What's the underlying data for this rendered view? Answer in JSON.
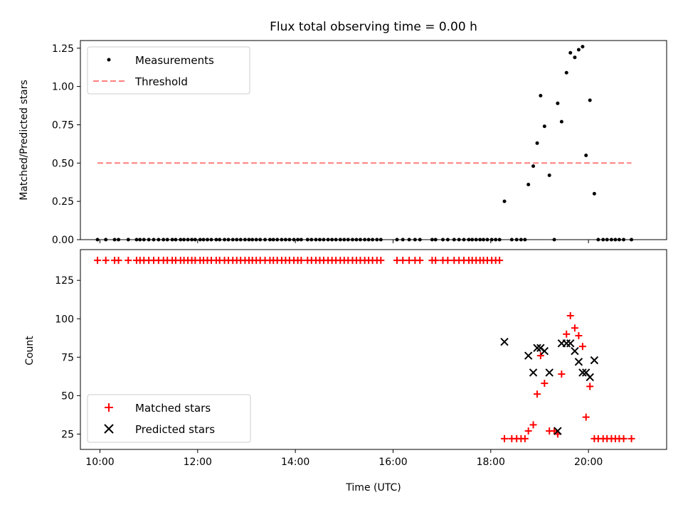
{
  "chart_data": [
    {
      "type": "scatter",
      "title": "Flux total observing time = 0.00 h",
      "xlabel": "",
      "ylabel": "Matched/Predicted stars",
      "ylim": [
        0,
        1.3
      ],
      "xlim": [
        9.6,
        21.6
      ],
      "yticks": [
        0,
        0.25,
        0.5,
        0.75,
        1.0,
        1.25
      ],
      "ytick_labels": [
        "0.00",
        "0.25",
        "0.50",
        "0.75",
        "1.00",
        "1.25"
      ],
      "legend": {
        "placement": "top-left",
        "entries": [
          "Measurements",
          "Threshold"
        ]
      },
      "series": [
        {
          "name": "Measurements",
          "marker": "dot",
          "color": "#000000",
          "points": [
            [
              9.95,
              0
            ],
            [
              10.12,
              0
            ],
            [
              10.3,
              0
            ],
            [
              10.38,
              0
            ],
            [
              10.58,
              0
            ],
            [
              10.75,
              0
            ],
            [
              10.82,
              0
            ],
            [
              10.9,
              0
            ],
            [
              11.0,
              0
            ],
            [
              11.1,
              0
            ],
            [
              11.2,
              0
            ],
            [
              11.3,
              0
            ],
            [
              11.38,
              0
            ],
            [
              11.48,
              0
            ],
            [
              11.55,
              0
            ],
            [
              11.65,
              0
            ],
            [
              11.72,
              0
            ],
            [
              11.8,
              0
            ],
            [
              11.88,
              0
            ],
            [
              11.95,
              0
            ],
            [
              12.05,
              0
            ],
            [
              12.12,
              0
            ],
            [
              12.2,
              0
            ],
            [
              12.28,
              0
            ],
            [
              12.38,
              0
            ],
            [
              12.45,
              0
            ],
            [
              12.55,
              0
            ],
            [
              12.63,
              0
            ],
            [
              12.72,
              0
            ],
            [
              12.8,
              0
            ],
            [
              12.88,
              0
            ],
            [
              12.97,
              0
            ],
            [
              13.05,
              0
            ],
            [
              13.12,
              0
            ],
            [
              13.2,
              0
            ],
            [
              13.28,
              0
            ],
            [
              13.38,
              0
            ],
            [
              13.48,
              0
            ],
            [
              13.55,
              0
            ],
            [
              13.63,
              0
            ],
            [
              13.72,
              0
            ],
            [
              13.8,
              0
            ],
            [
              13.88,
              0
            ],
            [
              13.97,
              0
            ],
            [
              14.05,
              0
            ],
            [
              14.12,
              0
            ],
            [
              14.25,
              0
            ],
            [
              14.33,
              0
            ],
            [
              14.42,
              0
            ],
            [
              14.5,
              0
            ],
            [
              14.58,
              0
            ],
            [
              14.67,
              0
            ],
            [
              14.75,
              0
            ],
            [
              14.83,
              0
            ],
            [
              14.92,
              0
            ],
            [
              15.0,
              0
            ],
            [
              15.08,
              0
            ],
            [
              15.17,
              0
            ],
            [
              15.25,
              0
            ],
            [
              15.33,
              0
            ],
            [
              15.42,
              0
            ],
            [
              15.5,
              0
            ],
            [
              15.58,
              0
            ],
            [
              15.67,
              0
            ],
            [
              15.75,
              0
            ],
            [
              16.08,
              0
            ],
            [
              16.2,
              0
            ],
            [
              16.33,
              0
            ],
            [
              16.45,
              0
            ],
            [
              16.55,
              0
            ],
            [
              16.8,
              0
            ],
            [
              16.87,
              0
            ],
            [
              17.02,
              0
            ],
            [
              17.12,
              0
            ],
            [
              17.25,
              0
            ],
            [
              17.35,
              0
            ],
            [
              17.45,
              0
            ],
            [
              17.55,
              0
            ],
            [
              17.62,
              0
            ],
            [
              17.7,
              0
            ],
            [
              17.78,
              0
            ],
            [
              17.85,
              0
            ],
            [
              17.93,
              0
            ],
            [
              18.02,
              0
            ],
            [
              18.1,
              0
            ],
            [
              18.18,
              0
            ],
            [
              18.28,
              0.25
            ],
            [
              18.43,
              0
            ],
            [
              18.53,
              0
            ],
            [
              18.62,
              0
            ],
            [
              18.7,
              0
            ],
            [
              18.77,
              0.36
            ],
            [
              18.87,
              0.48
            ],
            [
              18.95,
              0.63
            ],
            [
              19.02,
              0.94
            ],
            [
              19.1,
              0.74
            ],
            [
              19.2,
              0.42
            ],
            [
              19.3,
              0
            ],
            [
              19.37,
              0.89
            ],
            [
              19.45,
              0.77
            ],
            [
              19.55,
              1.09
            ],
            [
              19.63,
              1.22
            ],
            [
              19.72,
              1.19
            ],
            [
              19.8,
              1.24
            ],
            [
              19.88,
              1.26
            ],
            [
              19.95,
              0.55
            ],
            [
              20.03,
              0.91
            ],
            [
              20.12,
              0.3
            ],
            [
              20.2,
              0
            ],
            [
              20.3,
              0
            ],
            [
              20.38,
              0
            ],
            [
              20.47,
              0
            ],
            [
              20.55,
              0
            ],
            [
              20.63,
              0
            ],
            [
              20.72,
              0
            ],
            [
              20.88,
              0
            ]
          ]
        },
        {
          "name": "Threshold",
          "style": "dashed",
          "color": "#ff7f7f",
          "x": [
            9.95,
            20.88
          ],
          "y": [
            0.5,
            0.5
          ]
        }
      ]
    },
    {
      "type": "scatter",
      "title": "",
      "xlabel": "Time (UTC)",
      "ylabel": "Count",
      "ylim": [
        15,
        145
      ],
      "xlim": [
        9.6,
        21.6
      ],
      "yticks": [
        25,
        50,
        75,
        100,
        125
      ],
      "ytick_labels": [
        "25",
        "50",
        "75",
        "100",
        "125"
      ],
      "xticks": [
        10,
        12,
        14,
        16,
        18,
        20
      ],
      "xtick_labels": [
        "10:00",
        "12:00",
        "14:00",
        "16:00",
        "18:00",
        "20:00"
      ],
      "legend": {
        "placement": "bottom-left",
        "entries": [
          "Matched stars",
          "Predicted stars"
        ]
      },
      "series": [
        {
          "name": "Matched stars",
          "marker": "plus",
          "color": "#ff0000",
          "points": [
            [
              9.95,
              138
            ],
            [
              10.12,
              138
            ],
            [
              10.3,
              138
            ],
            [
              10.38,
              138
            ],
            [
              10.58,
              138
            ],
            [
              10.75,
              138
            ],
            [
              10.82,
              138
            ],
            [
              10.9,
              138
            ],
            [
              11.0,
              138
            ],
            [
              11.1,
              138
            ],
            [
              11.2,
              138
            ],
            [
              11.3,
              138
            ],
            [
              11.38,
              138
            ],
            [
              11.48,
              138
            ],
            [
              11.55,
              138
            ],
            [
              11.65,
              138
            ],
            [
              11.72,
              138
            ],
            [
              11.8,
              138
            ],
            [
              11.88,
              138
            ],
            [
              11.95,
              138
            ],
            [
              12.05,
              138
            ],
            [
              12.12,
              138
            ],
            [
              12.2,
              138
            ],
            [
              12.28,
              138
            ],
            [
              12.38,
              138
            ],
            [
              12.45,
              138
            ],
            [
              12.55,
              138
            ],
            [
              12.63,
              138
            ],
            [
              12.72,
              138
            ],
            [
              12.8,
              138
            ],
            [
              12.88,
              138
            ],
            [
              12.97,
              138
            ],
            [
              13.05,
              138
            ],
            [
              13.12,
              138
            ],
            [
              13.2,
              138
            ],
            [
              13.28,
              138
            ],
            [
              13.38,
              138
            ],
            [
              13.48,
              138
            ],
            [
              13.55,
              138
            ],
            [
              13.63,
              138
            ],
            [
              13.72,
              138
            ],
            [
              13.8,
              138
            ],
            [
              13.88,
              138
            ],
            [
              13.97,
              138
            ],
            [
              14.05,
              138
            ],
            [
              14.12,
              138
            ],
            [
              14.25,
              138
            ],
            [
              14.33,
              138
            ],
            [
              14.42,
              138
            ],
            [
              14.5,
              138
            ],
            [
              14.58,
              138
            ],
            [
              14.67,
              138
            ],
            [
              14.75,
              138
            ],
            [
              14.83,
              138
            ],
            [
              14.92,
              138
            ],
            [
              15.0,
              138
            ],
            [
              15.08,
              138
            ],
            [
              15.17,
              138
            ],
            [
              15.25,
              138
            ],
            [
              15.33,
              138
            ],
            [
              15.42,
              138
            ],
            [
              15.5,
              138
            ],
            [
              15.58,
              138
            ],
            [
              15.67,
              138
            ],
            [
              15.75,
              138
            ],
            [
              16.08,
              138
            ],
            [
              16.2,
              138
            ],
            [
              16.33,
              138
            ],
            [
              16.45,
              138
            ],
            [
              16.55,
              138
            ],
            [
              16.8,
              138
            ],
            [
              16.87,
              138
            ],
            [
              17.02,
              138
            ],
            [
              17.12,
              138
            ],
            [
              17.25,
              138
            ],
            [
              17.35,
              138
            ],
            [
              17.45,
              138
            ],
            [
              17.55,
              138
            ],
            [
              17.62,
              138
            ],
            [
              17.7,
              138
            ],
            [
              17.78,
              138
            ],
            [
              17.85,
              138
            ],
            [
              17.93,
              138
            ],
            [
              18.02,
              138
            ],
            [
              18.1,
              138
            ],
            [
              18.18,
              138
            ],
            [
              18.28,
              22
            ],
            [
              18.43,
              22
            ],
            [
              18.53,
              22
            ],
            [
              18.62,
              22
            ],
            [
              18.7,
              22
            ],
            [
              18.77,
              27
            ],
            [
              18.87,
              31
            ],
            [
              18.95,
              51
            ],
            [
              19.02,
              76
            ],
            [
              19.1,
              58
            ],
            [
              19.2,
              27
            ],
            [
              19.3,
              27
            ],
            [
              19.37,
              25
            ],
            [
              19.45,
              64
            ],
            [
              19.55,
              90
            ],
            [
              19.63,
              102
            ],
            [
              19.72,
              94
            ],
            [
              19.8,
              89
            ],
            [
              19.88,
              82
            ],
            [
              19.95,
              36
            ],
            [
              20.03,
              56
            ],
            [
              20.12,
              22
            ],
            [
              20.2,
              22
            ],
            [
              20.3,
              22
            ],
            [
              20.38,
              22
            ],
            [
              20.47,
              22
            ],
            [
              20.55,
              22
            ],
            [
              20.63,
              22
            ],
            [
              20.72,
              22
            ],
            [
              20.88,
              22
            ]
          ]
        },
        {
          "name": "Predicted stars",
          "marker": "x",
          "color": "#000000",
          "points": [
            [
              18.28,
              85
            ],
            [
              18.77,
              76
            ],
            [
              18.87,
              65
            ],
            [
              18.95,
              81
            ],
            [
              19.02,
              81
            ],
            [
              19.1,
              79
            ],
            [
              19.2,
              65
            ],
            [
              19.37,
              27
            ],
            [
              19.45,
              84
            ],
            [
              19.55,
              84
            ],
            [
              19.63,
              84
            ],
            [
              19.72,
              79
            ],
            [
              19.8,
              72
            ],
            [
              19.88,
              65
            ],
            [
              19.95,
              65
            ],
            [
              20.03,
              62
            ],
            [
              20.12,
              73
            ]
          ]
        }
      ]
    }
  ]
}
